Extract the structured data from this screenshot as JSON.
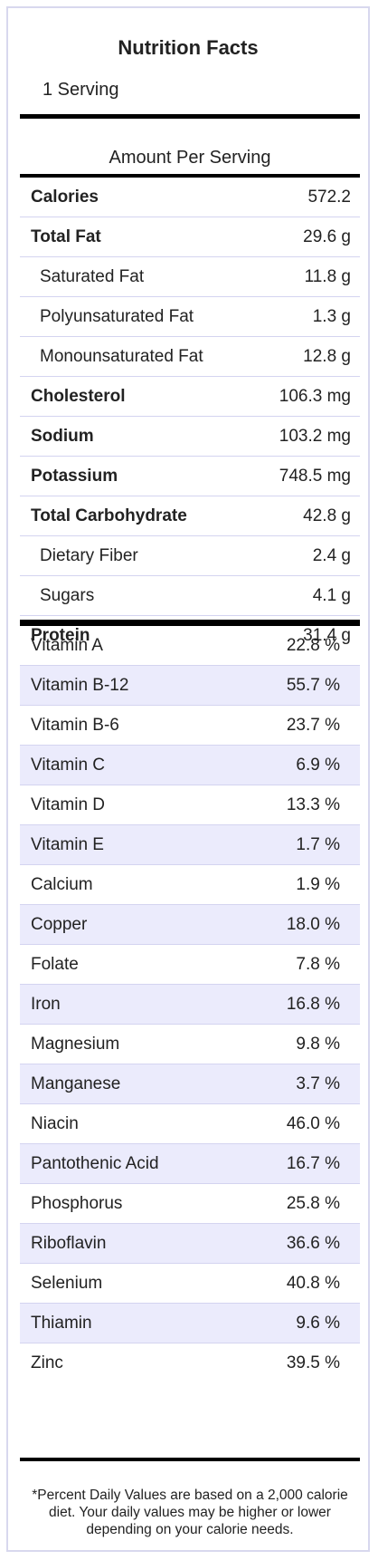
{
  "header": {
    "title": "Nutrition Facts",
    "serving": "1 Serving",
    "amount_per_serving": "Amount Per Serving"
  },
  "nutrients": [
    {
      "name": "Calories",
      "value": "572.2",
      "bold": true
    },
    {
      "name": "Total Fat",
      "value": "29.6 g",
      "bold": true
    },
    {
      "name": "Saturated Fat",
      "value": "11.8 g",
      "sub": true
    },
    {
      "name": "Polyunsaturated Fat",
      "value": "1.3 g",
      "sub": true
    },
    {
      "name": "Monounsaturated Fat",
      "value": "12.8 g",
      "sub": true
    },
    {
      "name": "Cholesterol",
      "value": "106.3 mg",
      "bold": true
    },
    {
      "name": "Sodium",
      "value": "103.2 mg",
      "bold": true
    },
    {
      "name": "Potassium",
      "value": "748.5 mg",
      "bold": true
    },
    {
      "name": "Total Carbohydrate",
      "value": "42.8 g",
      "bold": true
    },
    {
      "name": "Dietary Fiber",
      "value": "2.4 g",
      "sub": true
    },
    {
      "name": "Sugars",
      "value": "4.1 g",
      "sub": true
    },
    {
      "name": "Protein",
      "value": "31.4 g",
      "bold": true
    }
  ],
  "vitamins": [
    {
      "name": "Vitamin A",
      "value": "22.8 %"
    },
    {
      "name": "Vitamin B-12",
      "value": "55.7 %"
    },
    {
      "name": "Vitamin B-6",
      "value": "23.7 %"
    },
    {
      "name": "Vitamin C",
      "value": "6.9 %"
    },
    {
      "name": "Vitamin D",
      "value": "13.3 %"
    },
    {
      "name": "Vitamin E",
      "value": "1.7 %"
    },
    {
      "name": "Calcium",
      "value": "1.9 %"
    },
    {
      "name": "Copper",
      "value": "18.0 %"
    },
    {
      "name": "Folate",
      "value": "7.8 %"
    },
    {
      "name": "Iron",
      "value": "16.8 %"
    },
    {
      "name": "Magnesium",
      "value": "9.8 %"
    },
    {
      "name": "Manganese",
      "value": "3.7 %"
    },
    {
      "name": "Niacin",
      "value": "46.0 %"
    },
    {
      "name": "Pantothenic Acid",
      "value": "16.7 %"
    },
    {
      "name": "Phosphorus",
      "value": "25.8 %"
    },
    {
      "name": "Riboflavin",
      "value": "36.6 %"
    },
    {
      "name": "Selenium",
      "value": "40.8 %"
    },
    {
      "name": "Thiamin",
      "value": "9.6 %"
    },
    {
      "name": "Zinc",
      "value": "39.5 %"
    }
  ],
  "footnote": "*Percent Daily Values are based on a 2,000 calorie diet. Your daily values may be higher or lower depending on your calorie needs.",
  "colors": {
    "border": "#d8d8ee",
    "row_divider": "#d4d4f0",
    "stripe": "#ebebfc",
    "rule": "#000000"
  }
}
